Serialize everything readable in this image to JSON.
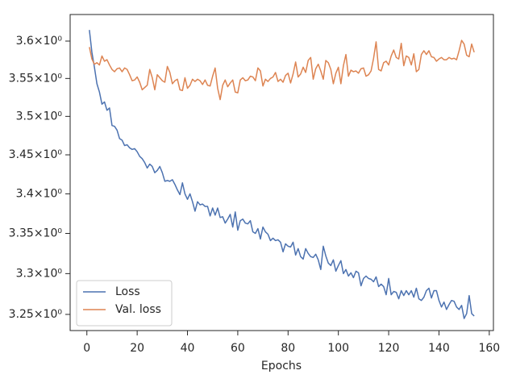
{
  "chart_data": {
    "type": "line",
    "xlabel": "Epochs",
    "yscale": "log",
    "legend": "lower left",
    "x": [
      1,
      2,
      3,
      4,
      5,
      6,
      7,
      8,
      9,
      10,
      11,
      12,
      13,
      14,
      15,
      16,
      17,
      18,
      19,
      20,
      21,
      22,
      23,
      24,
      25,
      26,
      27,
      28,
      29,
      30,
      31,
      32,
      33,
      34,
      35,
      36,
      37,
      38,
      39,
      40,
      41,
      42,
      43,
      44,
      45,
      46,
      47,
      48,
      49,
      50,
      51,
      52,
      53,
      54,
      55,
      56,
      57,
      58,
      59,
      60,
      61,
      62,
      63,
      64,
      65,
      66,
      67,
      68,
      69,
      70,
      71,
      72,
      73,
      74,
      75,
      76,
      77,
      78,
      79,
      80,
      81,
      82,
      83,
      84,
      85,
      86,
      87,
      88,
      89,
      90,
      91,
      92,
      93,
      94,
      95,
      96,
      97,
      98,
      99,
      100,
      101,
      102,
      103,
      104,
      105,
      106,
      107,
      108,
      109,
      110,
      111,
      112,
      113,
      114,
      115,
      116,
      117,
      118,
      119,
      120,
      121,
      122,
      123,
      124,
      125,
      126,
      127,
      128,
      129,
      130,
      131,
      132,
      133,
      134,
      135,
      136,
      137,
      138,
      139,
      140,
      141,
      142,
      143,
      144,
      145,
      146,
      147,
      148,
      149,
      150,
      151,
      152,
      153,
      154
    ],
    "series": [
      {
        "name": "Loss",
        "color": "#4c72b0",
        "values": [
          3.615,
          3.585,
          3.565,
          3.543,
          3.532,
          3.516,
          3.519,
          3.508,
          3.511,
          3.488,
          3.487,
          3.482,
          3.471,
          3.469,
          3.462,
          3.463,
          3.459,
          3.457,
          3.458,
          3.454,
          3.448,
          3.445,
          3.44,
          3.433,
          3.438,
          3.435,
          3.427,
          3.43,
          3.435,
          3.427,
          3.416,
          3.417,
          3.416,
          3.418,
          3.412,
          3.405,
          3.399,
          3.414,
          3.4,
          3.393,
          3.4,
          3.39,
          3.378,
          3.39,
          3.386,
          3.387,
          3.384,
          3.384,
          3.372,
          3.382,
          3.373,
          3.382,
          3.37,
          3.371,
          3.363,
          3.368,
          3.374,
          3.358,
          3.377,
          3.354,
          3.366,
          3.368,
          3.363,
          3.362,
          3.366,
          3.352,
          3.35,
          3.356,
          3.343,
          3.358,
          3.352,
          3.349,
          3.341,
          3.344,
          3.341,
          3.342,
          3.339,
          3.327,
          3.337,
          3.334,
          3.333,
          3.339,
          3.323,
          3.331,
          3.321,
          3.318,
          3.331,
          3.325,
          3.321,
          3.32,
          3.324,
          3.317,
          3.305,
          3.334,
          3.322,
          3.313,
          3.31,
          3.317,
          3.303,
          3.31,
          3.316,
          3.3,
          3.305,
          3.297,
          3.301,
          3.295,
          3.303,
          3.301,
          3.285,
          3.294,
          3.297,
          3.294,
          3.293,
          3.29,
          3.296,
          3.284,
          3.287,
          3.284,
          3.274,
          3.294,
          3.274,
          3.278,
          3.277,
          3.269,
          3.279,
          3.273,
          3.279,
          3.274,
          3.279,
          3.271,
          3.282,
          3.269,
          3.267,
          3.271,
          3.279,
          3.282,
          3.27,
          3.279,
          3.279,
          3.267,
          3.259,
          3.265,
          3.256,
          3.262,
          3.267,
          3.266,
          3.259,
          3.256,
          3.261,
          3.245,
          3.251,
          3.273,
          3.251,
          3.248
        ]
      },
      {
        "name": "Val. loss",
        "color": "#dd8452",
        "values": [
          3.592,
          3.576,
          3.569,
          3.571,
          3.568,
          3.58,
          3.573,
          3.575,
          3.568,
          3.562,
          3.559,
          3.563,
          3.564,
          3.559,
          3.564,
          3.562,
          3.555,
          3.547,
          3.548,
          3.552,
          3.545,
          3.535,
          3.538,
          3.541,
          3.562,
          3.551,
          3.535,
          3.555,
          3.551,
          3.547,
          3.545,
          3.566,
          3.558,
          3.543,
          3.547,
          3.549,
          3.535,
          3.534,
          3.551,
          3.537,
          3.541,
          3.549,
          3.546,
          3.549,
          3.547,
          3.542,
          3.548,
          3.541,
          3.54,
          3.553,
          3.564,
          3.537,
          3.522,
          3.541,
          3.548,
          3.539,
          3.544,
          3.548,
          3.532,
          3.531,
          3.548,
          3.551,
          3.547,
          3.548,
          3.553,
          3.552,
          3.547,
          3.564,
          3.56,
          3.54,
          3.549,
          3.546,
          3.55,
          3.552,
          3.558,
          3.546,
          3.549,
          3.545,
          3.554,
          3.557,
          3.544,
          3.556,
          3.572,
          3.552,
          3.556,
          3.565,
          3.558,
          3.574,
          3.578,
          3.549,
          3.563,
          3.569,
          3.56,
          3.549,
          3.574,
          3.571,
          3.562,
          3.543,
          3.557,
          3.565,
          3.543,
          3.567,
          3.582,
          3.553,
          3.561,
          3.559,
          3.56,
          3.557,
          3.563,
          3.564,
          3.553,
          3.555,
          3.56,
          3.577,
          3.599,
          3.562,
          3.56,
          3.571,
          3.573,
          3.568,
          3.58,
          3.588,
          3.578,
          3.576,
          3.597,
          3.567,
          3.58,
          3.578,
          3.568,
          3.583,
          3.559,
          3.562,
          3.582,
          3.587,
          3.582,
          3.587,
          3.579,
          3.578,
          3.573,
          3.576,
          3.578,
          3.575,
          3.575,
          3.578,
          3.576,
          3.577,
          3.575,
          3.587,
          3.601,
          3.596,
          3.581,
          3.579,
          3.596,
          3.585
        ]
      }
    ],
    "xlim": [
      -6.65,
      161.65
    ],
    "xticks": [
      0,
      20,
      40,
      60,
      80,
      100,
      120,
      140,
      160
    ],
    "ylim": [
      3.2304,
      3.636
    ],
    "yticks": [
      {
        "value": 3.25,
        "label": "3.25×10⁰"
      },
      {
        "value": 3.3,
        "label": "3.3×10⁰"
      },
      {
        "value": 3.35,
        "label": "3.35×10⁰"
      },
      {
        "value": 3.4,
        "label": "3.4×10⁰"
      },
      {
        "value": 3.45,
        "label": "3.45×10⁰"
      },
      {
        "value": 3.5,
        "label": "3.5×10⁰"
      },
      {
        "value": 3.55,
        "label": "3.55×10⁰"
      },
      {
        "value": 3.6,
        "label": "3.6×10⁰"
      }
    ]
  }
}
